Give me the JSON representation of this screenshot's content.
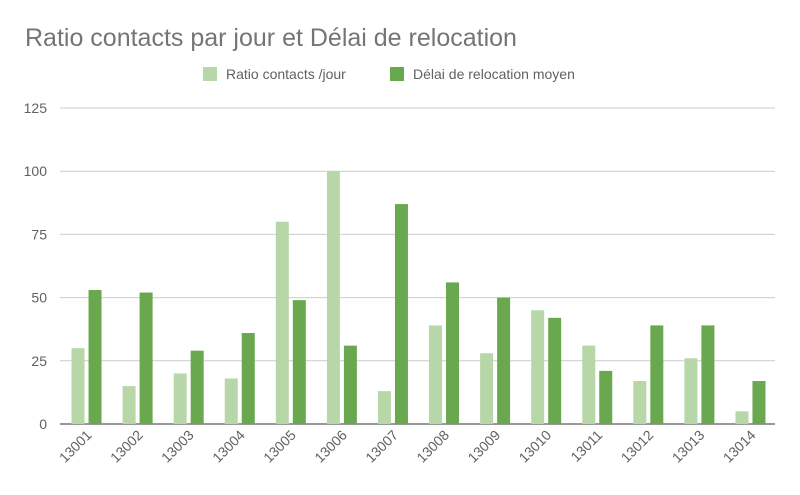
{
  "chart_data": {
    "type": "bar",
    "title": "Ratio contacts par jour et Délai de relocation",
    "xlabel": "",
    "ylabel": "",
    "categories": [
      "13001",
      "13002",
      "13003",
      "13004",
      "13005",
      "13006",
      "13007",
      "13008",
      "13009",
      "13010",
      "13011",
      "13012",
      "13013",
      "13014"
    ],
    "series": [
      {
        "name": "Ratio contacts /jour",
        "color": "#b7d7a8",
        "values": [
          30,
          15,
          20,
          18,
          80,
          100,
          13,
          39,
          28,
          45,
          31,
          17,
          26,
          5
        ]
      },
      {
        "name": "Délai de relocation moyen",
        "color": "#6aa84f",
        "values": [
          53,
          52,
          29,
          36,
          49,
          31,
          87,
          56,
          50,
          42,
          21,
          39,
          39,
          17
        ]
      }
    ],
    "ylim": [
      0,
      125
    ],
    "yticks": [
      "0",
      "25",
      "50",
      "75",
      "100",
      "125"
    ],
    "grid": true,
    "legend_position": "top"
  }
}
